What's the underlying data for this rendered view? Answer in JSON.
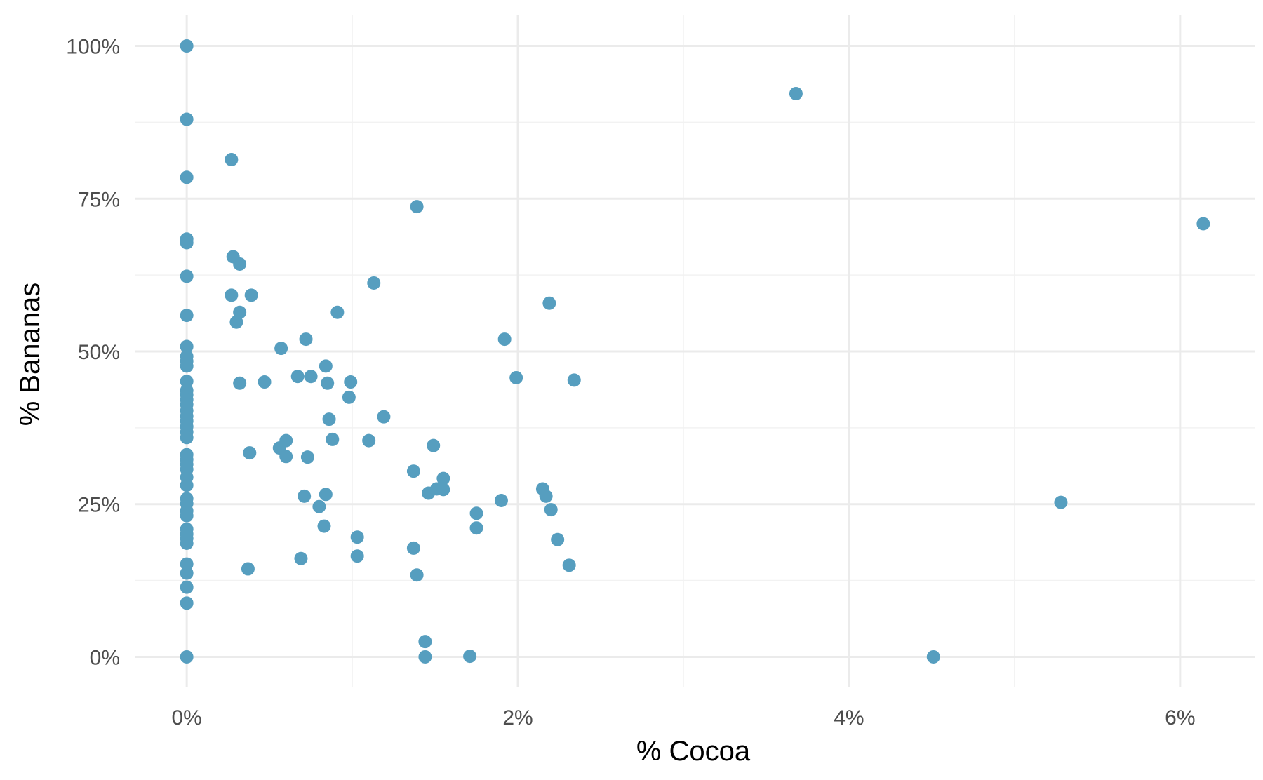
{
  "chart_data": {
    "type": "scatter",
    "xlabel": "% Cocoa",
    "ylabel": "% Bananas",
    "xlim": [
      -0.31,
      6.45
    ],
    "ylim": [
      -5,
      105
    ],
    "x_ticks": [
      0,
      2,
      4,
      6
    ],
    "x_tick_labels": [
      "0%",
      "2%",
      "4%",
      "6%"
    ],
    "y_ticks": [
      0,
      25,
      50,
      75,
      100
    ],
    "y_tick_labels": [
      "0%",
      "25%",
      "50%",
      "75%",
      "100%"
    ],
    "grid": true,
    "legend": "none",
    "point_color": "#569ebf",
    "points": [
      {
        "x": 0,
        "y": 100
      },
      {
        "x": 0,
        "y": 88
      },
      {
        "x": 0,
        "y": 78.5
      },
      {
        "x": 0,
        "y": 68.4
      },
      {
        "x": 0,
        "y": 67.8
      },
      {
        "x": 0,
        "y": 62.3
      },
      {
        "x": 0,
        "y": 55.9
      },
      {
        "x": 0,
        "y": 50.8
      },
      {
        "x": 0,
        "y": 49.2
      },
      {
        "x": 0,
        "y": 48.4
      },
      {
        "x": 0,
        "y": 47.6
      },
      {
        "x": 0,
        "y": 45.1
      },
      {
        "x": 0,
        "y": 43.6
      },
      {
        "x": 0,
        "y": 42.9
      },
      {
        "x": 0,
        "y": 42.1
      },
      {
        "x": 0,
        "y": 41.3
      },
      {
        "x": 0,
        "y": 40.3
      },
      {
        "x": 0,
        "y": 39.4
      },
      {
        "x": 0,
        "y": 38.6
      },
      {
        "x": 0,
        "y": 37.7
      },
      {
        "x": 0,
        "y": 36.8
      },
      {
        "x": 0,
        "y": 35.9
      },
      {
        "x": 0,
        "y": 33.1
      },
      {
        "x": 0,
        "y": 32.3
      },
      {
        "x": 0,
        "y": 31.5
      },
      {
        "x": 0,
        "y": 30.7
      },
      {
        "x": 0,
        "y": 29.4
      },
      {
        "x": 0,
        "y": 28.1
      },
      {
        "x": 0,
        "y": 25.9
      },
      {
        "x": 0,
        "y": 25.1
      },
      {
        "x": 0,
        "y": 23.9
      },
      {
        "x": 0,
        "y": 23.1
      },
      {
        "x": 0,
        "y": 20.9
      },
      {
        "x": 0,
        "y": 20.1
      },
      {
        "x": 0,
        "y": 19.4
      },
      {
        "x": 0,
        "y": 18.6
      },
      {
        "x": 0,
        "y": 15.2
      },
      {
        "x": 0,
        "y": 13.7
      },
      {
        "x": 0,
        "y": 11.4
      },
      {
        "x": 0,
        "y": 8.8
      },
      {
        "x": 0,
        "y": 0
      },
      {
        "x": 0.27,
        "y": 81.4
      },
      {
        "x": 0.28,
        "y": 65.5
      },
      {
        "x": 0.32,
        "y": 64.3
      },
      {
        "x": 0.27,
        "y": 59.2
      },
      {
        "x": 0.39,
        "y": 59.2
      },
      {
        "x": 0.32,
        "y": 56.4
      },
      {
        "x": 0.3,
        "y": 54.8
      },
      {
        "x": 0.32,
        "y": 44.8
      },
      {
        "x": 0.47,
        "y": 45.0
      },
      {
        "x": 0.38,
        "y": 33.4
      },
      {
        "x": 0.37,
        "y": 14.4
      },
      {
        "x": 0.57,
        "y": 50.5
      },
      {
        "x": 0.67,
        "y": 45.9
      },
      {
        "x": 0.72,
        "y": 52.0
      },
      {
        "x": 0.75,
        "y": 45.9
      },
      {
        "x": 0.84,
        "y": 47.6
      },
      {
        "x": 0.85,
        "y": 44.8
      },
      {
        "x": 0.56,
        "y": 34.2
      },
      {
        "x": 0.6,
        "y": 35.4
      },
      {
        "x": 0.6,
        "y": 32.8
      },
      {
        "x": 0.73,
        "y": 32.7
      },
      {
        "x": 0.71,
        "y": 26.3
      },
      {
        "x": 0.84,
        "y": 26.6
      },
      {
        "x": 0.8,
        "y": 24.6
      },
      {
        "x": 0.83,
        "y": 21.4
      },
      {
        "x": 0.69,
        "y": 16.1
      },
      {
        "x": 0.91,
        "y": 56.4
      },
      {
        "x": 0.86,
        "y": 38.9
      },
      {
        "x": 0.88,
        "y": 35.6
      },
      {
        "x": 0.98,
        "y": 42.5
      },
      {
        "x": 0.99,
        "y": 45.0
      },
      {
        "x": 1.13,
        "y": 61.2
      },
      {
        "x": 1.19,
        "y": 39.3
      },
      {
        "x": 1.1,
        "y": 35.4
      },
      {
        "x": 1.03,
        "y": 19.6
      },
      {
        "x": 1.03,
        "y": 16.5
      },
      {
        "x": 1.39,
        "y": 73.7
      },
      {
        "x": 1.49,
        "y": 34.6
      },
      {
        "x": 1.37,
        "y": 30.4
      },
      {
        "x": 1.55,
        "y": 29.2
      },
      {
        "x": 1.51,
        "y": 27.5
      },
      {
        "x": 1.55,
        "y": 27.4
      },
      {
        "x": 1.46,
        "y": 26.8
      },
      {
        "x": 1.37,
        "y": 17.8
      },
      {
        "x": 1.39,
        "y": 13.4
      },
      {
        "x": 1.44,
        "y": 2.5
      },
      {
        "x": 1.44,
        "y": 0
      },
      {
        "x": 1.75,
        "y": 23.5
      },
      {
        "x": 1.75,
        "y": 21.1
      },
      {
        "x": 1.71,
        "y": 0.1
      },
      {
        "x": 1.92,
        "y": 52.0
      },
      {
        "x": 1.99,
        "y": 45.7
      },
      {
        "x": 1.9,
        "y": 25.6
      },
      {
        "x": 2.19,
        "y": 57.9
      },
      {
        "x": 2.34,
        "y": 45.3
      },
      {
        "x": 2.15,
        "y": 27.5
      },
      {
        "x": 2.17,
        "y": 26.3
      },
      {
        "x": 2.2,
        "y": 24.1
      },
      {
        "x": 2.24,
        "y": 19.2
      },
      {
        "x": 2.31,
        "y": 15.0
      },
      {
        "x": 3.68,
        "y": 92.2
      },
      {
        "x": 4.51,
        "y": 0
      },
      {
        "x": 5.28,
        "y": 25.3
      },
      {
        "x": 6.14,
        "y": 70.9
      }
    ]
  }
}
